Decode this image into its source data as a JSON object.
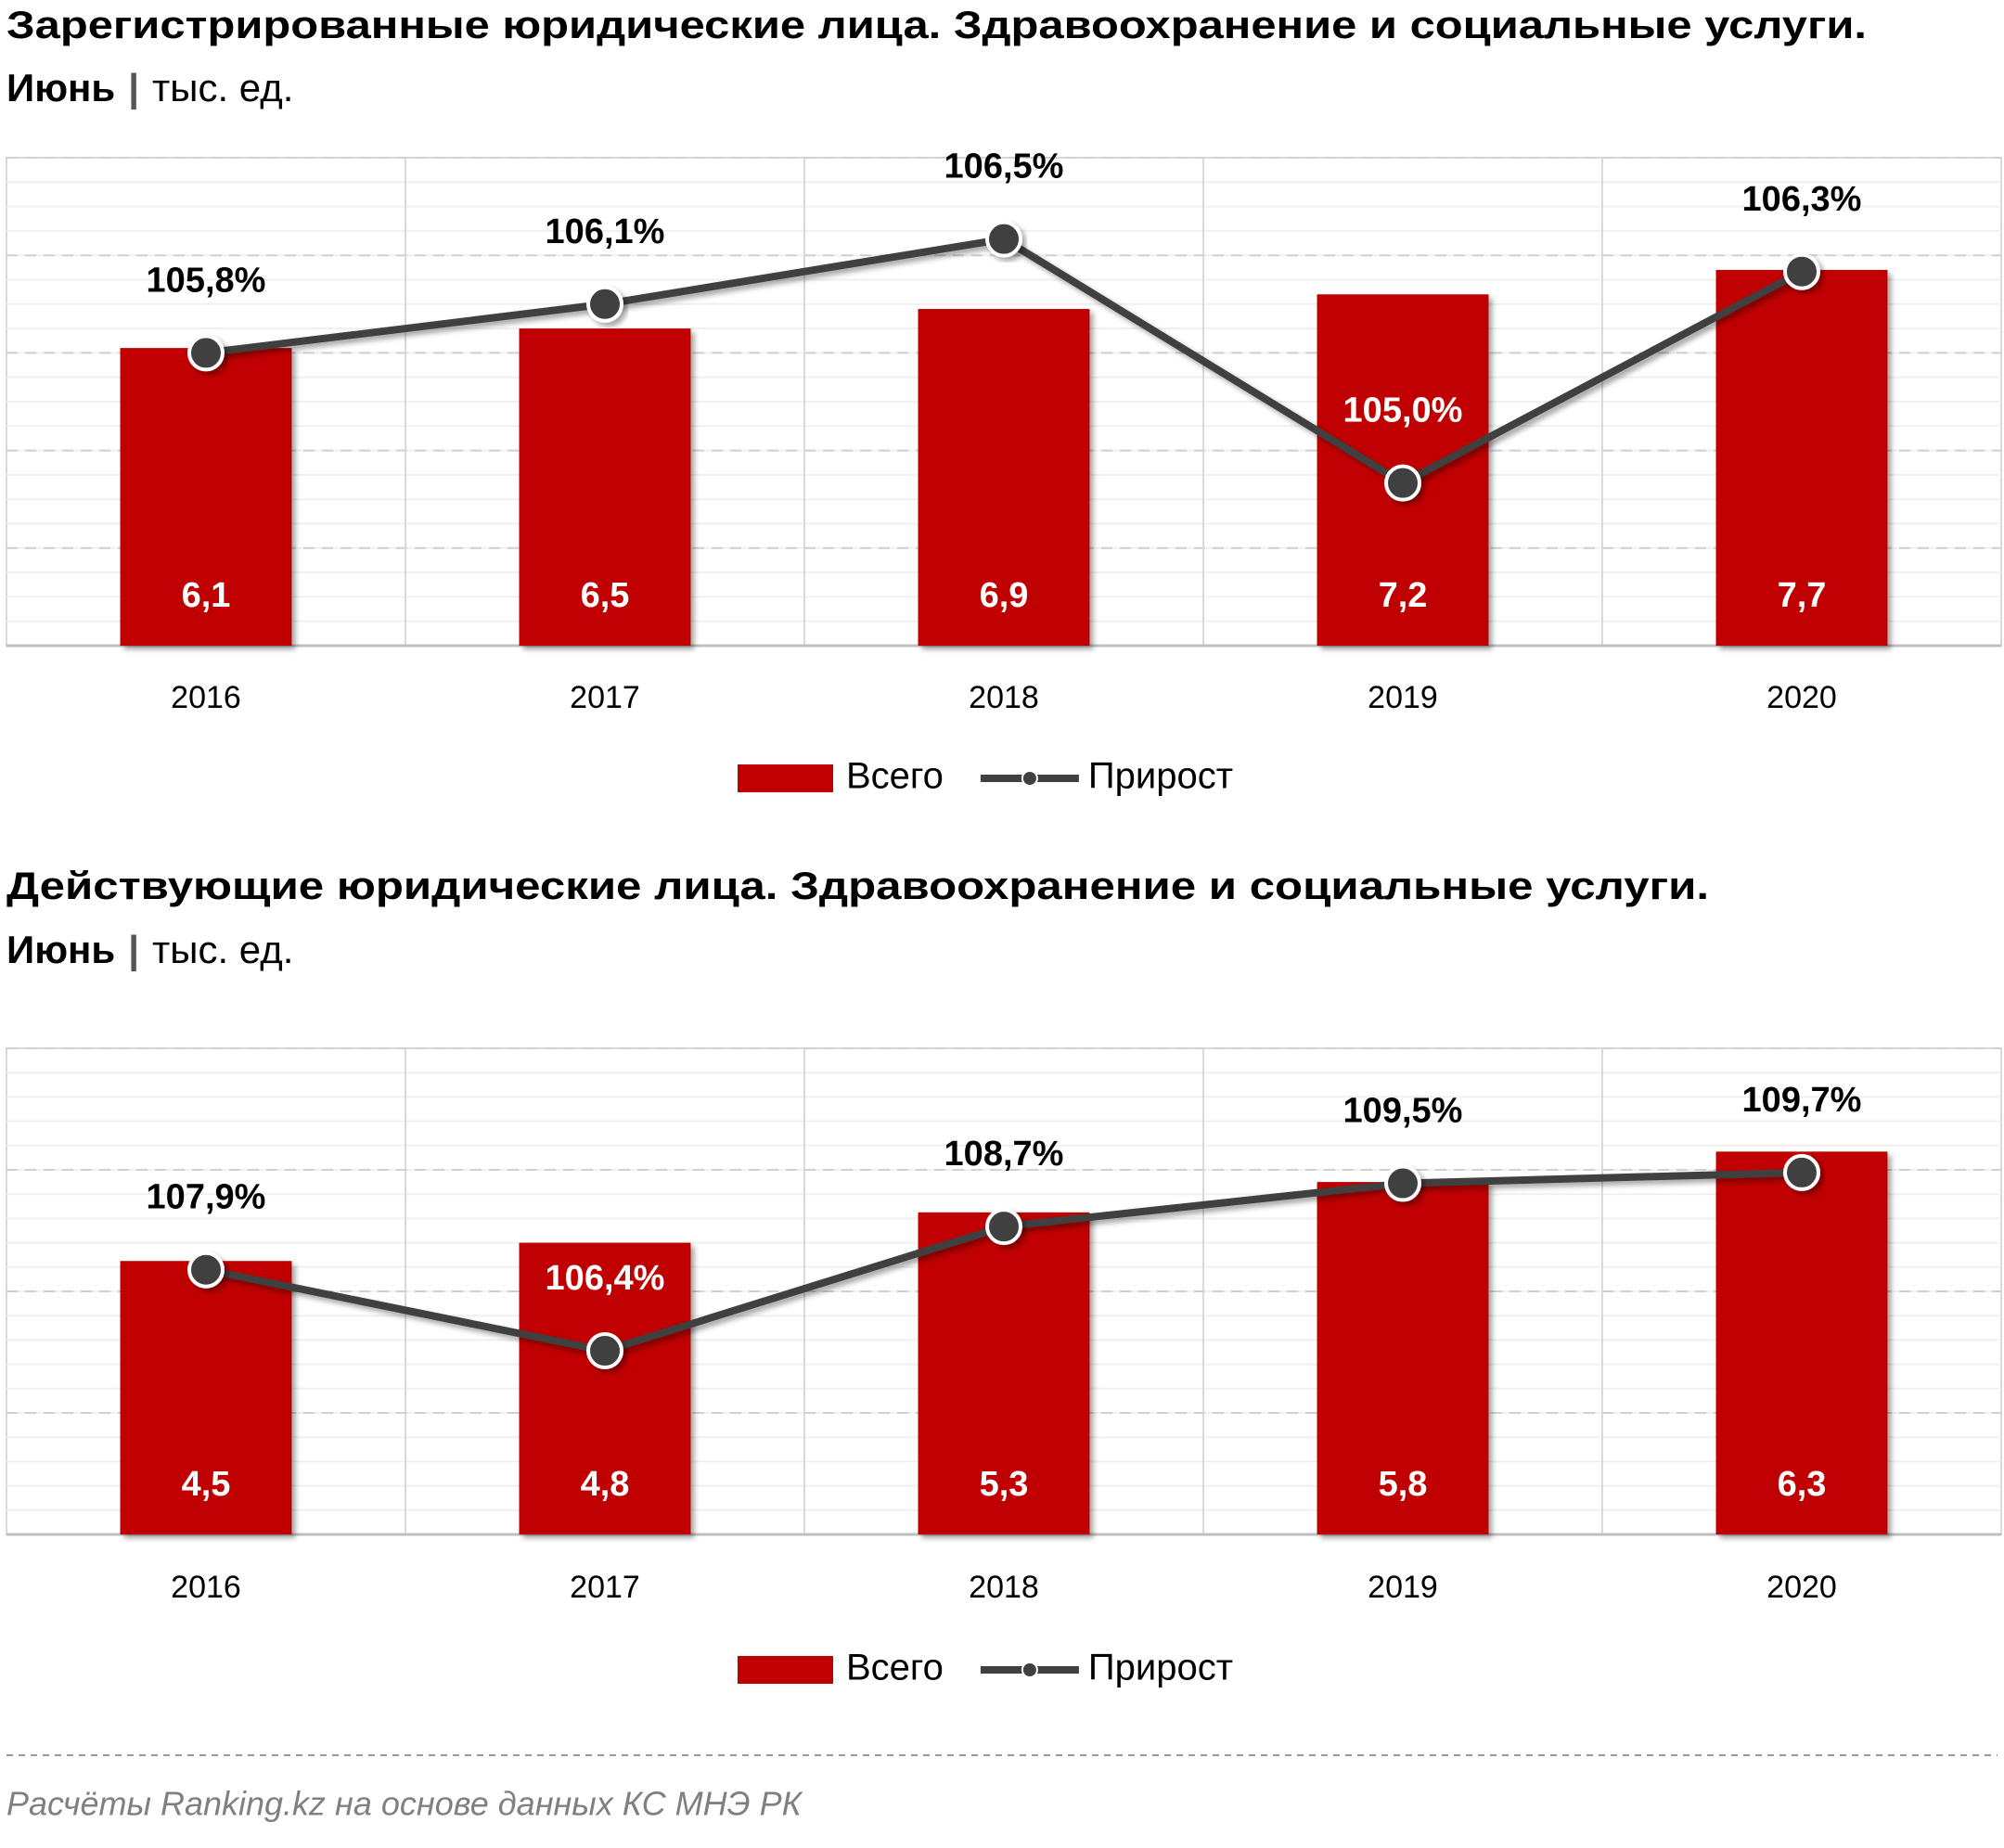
{
  "chart_data": [
    {
      "type": "combo",
      "title": "Зарегистрированные юридические лица. Здравоохранение и социальные услуги.",
      "subtitle": {
        "period": "Июнь",
        "separator": "|",
        "unit": "тыс. ед."
      },
      "categories": [
        "2016",
        "2017",
        "2018",
        "2019",
        "2020"
      ],
      "ylim": [
        0,
        10
      ],
      "y2lim": [
        104,
        107
      ],
      "series": [
        {
          "name": "Всего",
          "type": "bar",
          "color": "#c00000",
          "values": [
            6.1,
            6.5,
            6.9,
            7.2,
            7.7
          ],
          "value_labels": [
            "6,1",
            "6,5",
            "6,9",
            "7,2",
            "7,7"
          ]
        },
        {
          "name": "Прирост",
          "type": "line",
          "axis": "y2",
          "color": "#404040",
          "values": [
            105.8,
            106.1,
            106.5,
            105.0,
            106.3
          ],
          "value_labels": [
            "105,8%",
            "106,1%",
            "106,5%",
            "105,0%",
            "106,3%"
          ]
        }
      ]
    },
    {
      "type": "combo",
      "title": "Действующие юридические лица. Здравоохранение и социальные услуги.",
      "subtitle": {
        "period": "Июнь",
        "separator": "|",
        "unit": "тыс. ед."
      },
      "categories": [
        "2016",
        "2017",
        "2018",
        "2019",
        "2020"
      ],
      "ylim": [
        0,
        8
      ],
      "y2lim": [
        103,
        112
      ],
      "series": [
        {
          "name": "Всего",
          "type": "bar",
          "color": "#c00000",
          "values": [
            4.5,
            4.8,
            5.3,
            5.8,
            6.3
          ],
          "value_labels": [
            "4,5",
            "4,8",
            "5,3",
            "5,8",
            "6,3"
          ]
        },
        {
          "name": "Прирост",
          "type": "line",
          "axis": "y2",
          "color": "#404040",
          "values": [
            107.9,
            106.4,
            108.7,
            109.5,
            109.7
          ],
          "value_labels": [
            "107,9%",
            "106,4%",
            "108,7%",
            "109,5%",
            "109,7%"
          ]
        }
      ]
    }
  ],
  "source": "Расчёты Ranking.kz на основе данных  КС МНЭ РК"
}
